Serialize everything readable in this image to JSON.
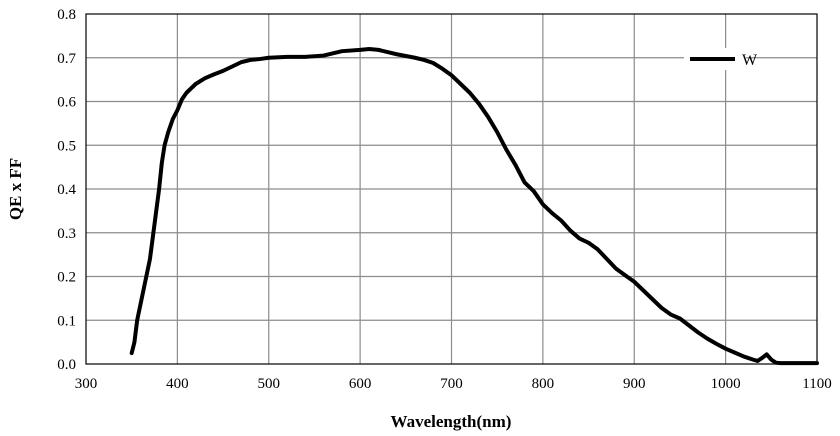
{
  "chart_data": {
    "type": "line",
    "title": "",
    "xlabel": "Wavelength(nm)",
    "ylabel": "QE x FF",
    "xlim": [
      300,
      1100
    ],
    "ylim": [
      0.0,
      0.8
    ],
    "x_ticks": [
      "300",
      "400",
      "500",
      "600",
      "700",
      "800",
      "900",
      "1000",
      "1100"
    ],
    "y_ticks": [
      "0.0",
      "0.1",
      "0.2",
      "0.3",
      "0.4",
      "0.5",
      "0.6",
      "0.7",
      "0.8"
    ],
    "grid": true,
    "legend": {
      "position": "top-right",
      "entries": [
        "W"
      ]
    },
    "series": [
      {
        "name": "W",
        "x": [
          350,
          353,
          356,
          360,
          365,
          370,
          375,
          380,
          383,
          386,
          390,
          395,
          400,
          405,
          410,
          420,
          430,
          440,
          450,
          460,
          470,
          480,
          490,
          500,
          520,
          540,
          560,
          580,
          600,
          610,
          620,
          640,
          660,
          670,
          680,
          690,
          700,
          710,
          720,
          730,
          740,
          750,
          760,
          770,
          780,
          790,
          800,
          810,
          820,
          830,
          840,
          850,
          860,
          870,
          880,
          890,
          900,
          910,
          920,
          930,
          940,
          950,
          960,
          970,
          980,
          990,
          1000,
          1010,
          1020,
          1030,
          1035,
          1040,
          1045,
          1050,
          1055,
          1060,
          1070,
          1080,
          1090,
          1100
        ],
        "values": [
          0.025,
          0.05,
          0.1,
          0.14,
          0.19,
          0.24,
          0.32,
          0.4,
          0.46,
          0.5,
          0.53,
          0.56,
          0.58,
          0.605,
          0.62,
          0.64,
          0.653,
          0.662,
          0.67,
          0.68,
          0.69,
          0.695,
          0.697,
          0.7,
          0.702,
          0.702,
          0.705,
          0.715,
          0.718,
          0.72,
          0.718,
          0.708,
          0.7,
          0.695,
          0.688,
          0.675,
          0.66,
          0.64,
          0.62,
          0.595,
          0.565,
          0.53,
          0.49,
          0.455,
          0.415,
          0.395,
          0.365,
          0.345,
          0.328,
          0.305,
          0.287,
          0.277,
          0.262,
          0.24,
          0.218,
          0.203,
          0.188,
          0.168,
          0.148,
          0.128,
          0.113,
          0.104,
          0.088,
          0.072,
          0.058,
          0.046,
          0.035,
          0.026,
          0.017,
          0.01,
          0.007,
          0.014,
          0.022,
          0.01,
          0.003,
          0.002,
          0.002,
          0.002,
          0.002,
          0.002
        ]
      }
    ]
  }
}
